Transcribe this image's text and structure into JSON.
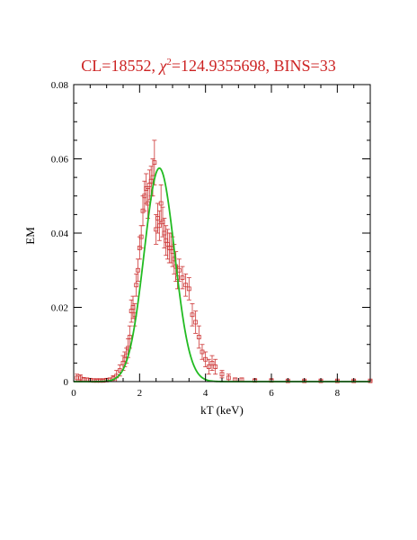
{
  "chart_data": {
    "type": "scatter",
    "title_parts": {
      "prefix": "CL=18552,  ",
      "chi": "χ",
      "sup": "2",
      "suffix": "=124.9355698,  BINS=33"
    },
    "xlabel": "kT  (keV)",
    "ylabel": "EM",
    "xlim": [
      0,
      9
    ],
    "ylim": [
      0,
      0.08
    ],
    "xticks": [
      0,
      2,
      4,
      6,
      8
    ],
    "yticks": [
      0,
      0.02,
      0.04,
      0.06,
      0.08
    ],
    "ytick_labels": [
      "0",
      "0.02",
      "0.04",
      "0.06",
      "0.08"
    ],
    "grid": false,
    "colors": {
      "data": "#cc3333",
      "model": "#22bb22",
      "title": "#cc2222"
    },
    "series": [
      {
        "kind": "points-with-errorbars",
        "x": [
          0.1,
          0.2,
          0.3,
          0.4,
          0.5,
          0.6,
          0.7,
          0.8,
          0.9,
          1.0,
          1.1,
          1.2,
          1.3,
          1.4,
          1.5,
          1.55,
          1.6,
          1.65,
          1.7,
          1.75,
          1.8,
          1.85,
          1.9,
          1.95,
          2.0,
          2.05,
          2.1,
          2.15,
          2.2,
          2.25,
          2.3,
          2.35,
          2.4,
          2.45,
          2.5,
          2.55,
          2.6,
          2.65,
          2.7,
          2.75,
          2.8,
          2.85,
          2.9,
          2.95,
          3.0,
          3.05,
          3.1,
          3.15,
          3.2,
          3.3,
          3.4,
          3.5,
          3.6,
          3.7,
          3.8,
          3.9,
          4.0,
          4.1,
          4.2,
          4.3,
          4.5,
          4.7,
          4.9,
          5.1,
          5.5,
          6.0,
          6.5,
          7.0,
          7.5,
          8.0,
          8.5,
          9.0
        ],
        "y": [
          0.001,
          0.001,
          0.0005,
          0.0005,
          0.0004,
          0.0003,
          0.0003,
          0.0003,
          0.0003,
          0.0004,
          0.0005,
          0.0008,
          0.0015,
          0.003,
          0.005,
          0.006,
          0.007,
          0.009,
          0.012,
          0.019,
          0.02,
          0.018,
          0.026,
          0.03,
          0.036,
          0.039,
          0.046,
          0.05,
          0.052,
          0.048,
          0.053,
          0.054,
          0.055,
          0.059,
          0.041,
          0.044,
          0.042,
          0.048,
          0.043,
          0.04,
          0.038,
          0.037,
          0.036,
          0.036,
          0.035,
          0.033,
          0.031,
          0.028,
          0.03,
          0.028,
          0.026,
          0.025,
          0.018,
          0.016,
          0.012,
          0.008,
          0.006,
          0.004,
          0.005,
          0.004,
          0.002,
          0.001,
          0.0005,
          0.0005,
          0.0003,
          0.0003,
          0.0002,
          0.0002,
          0.0002,
          0.0002,
          0.0002,
          0.0002
        ],
        "err": [
          0.001,
          0.0008,
          0.0006,
          0.0005,
          0.0004,
          0.0004,
          0.0003,
          0.0003,
          0.0003,
          0.0004,
          0.0005,
          0.0008,
          0.0015,
          0.0015,
          0.002,
          0.002,
          0.002,
          0.0025,
          0.003,
          0.003,
          0.003,
          0.003,
          0.003,
          0.003,
          0.003,
          0.003,
          0.004,
          0.004,
          0.004,
          0.004,
          0.004,
          0.004,
          0.005,
          0.006,
          0.004,
          0.004,
          0.004,
          0.005,
          0.004,
          0.004,
          0.004,
          0.004,
          0.004,
          0.004,
          0.004,
          0.004,
          0.004,
          0.003,
          0.003,
          0.003,
          0.003,
          0.003,
          0.003,
          0.003,
          0.003,
          0.002,
          0.002,
          0.002,
          0.002,
          0.002,
          0.001,
          0.001,
          0.0005,
          0.0005,
          0.0003,
          0.0003,
          0.0002,
          0.0002,
          0.0002,
          0.0002,
          0.0002,
          0.0002
        ]
      },
      {
        "kind": "model-curve",
        "peak_x": 2.6,
        "peak_y": 0.0575,
        "sigma": 0.46
      }
    ]
  }
}
